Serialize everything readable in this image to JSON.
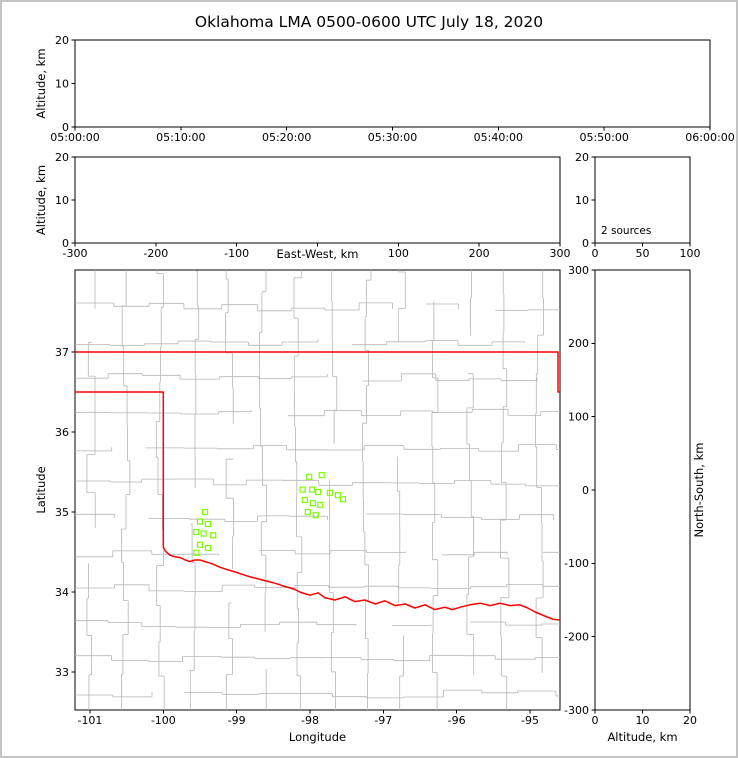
{
  "title": "Oklahoma LMA 0500-0600 UTC July 18, 2020",
  "colors": {
    "background": "#ffffff",
    "frame": "#c4c4c4",
    "axis": "#000000",
    "county": "#b6b6b6",
    "state_border": "#ff0000",
    "station": "#7CFC00",
    "text": "#000000"
  },
  "chart_data": [
    {
      "id": "time_height",
      "type": "scatter",
      "title": "",
      "xlabel": "",
      "ylabel": "Altitude, km",
      "xlim": [
        0,
        3600
      ],
      "ylim": [
        0,
        20
      ],
      "x_ticks": [
        [
          0,
          "05:00:00"
        ],
        [
          600,
          "05:10:00"
        ],
        [
          1200,
          "05:20:00"
        ],
        [
          1800,
          "05:30:00"
        ],
        [
          2400,
          "05:40:00"
        ],
        [
          3000,
          "05:50:00"
        ],
        [
          3600,
          "06:00:00"
        ]
      ],
      "y_ticks": [
        [
          0,
          "0"
        ],
        [
          10,
          "10"
        ],
        [
          20,
          "20"
        ]
      ],
      "points": []
    },
    {
      "id": "east_west_height",
      "type": "scatter",
      "xlabel": "East-West, km",
      "ylabel": "Altitude, km",
      "xlim": [
        -300,
        300
      ],
      "ylim": [
        0,
        20
      ],
      "x_ticks": [
        [
          -300,
          "-300"
        ],
        [
          -200,
          "-200"
        ],
        [
          -100,
          "-100"
        ],
        [
          0,
          ""
        ],
        [
          100,
          "100"
        ],
        [
          200,
          "200"
        ],
        [
          300,
          "300"
        ]
      ],
      "y_ticks": [
        [
          0,
          "0"
        ],
        [
          10,
          "10"
        ],
        [
          20,
          "20"
        ]
      ],
      "points": []
    },
    {
      "id": "source_count",
      "type": "histogram",
      "xlabel": "",
      "ylabel": "",
      "xlim": [
        0,
        100
      ],
      "ylim": [
        0,
        20
      ],
      "x_ticks": [
        [
          0,
          "0"
        ],
        [
          50,
          "50"
        ],
        [
          100,
          "100"
        ]
      ],
      "y_ticks": [
        [
          0,
          "0"
        ],
        [
          10,
          "10"
        ],
        [
          20,
          "20"
        ]
      ],
      "annotation": "2 sources",
      "points": []
    },
    {
      "id": "plan_view_map",
      "type": "map-scatter",
      "xlabel": "Longitude",
      "ylabel": "Latitude",
      "xlim": [
        -101.204,
        -94.591
      ],
      "ylim": [
        32.525,
        38.025
      ],
      "x_ticks": [
        [
          -101,
          "-101"
        ],
        [
          -100,
          "-100"
        ],
        [
          -99,
          "-99"
        ],
        [
          -98,
          "-98"
        ],
        [
          -97,
          "-97"
        ],
        [
          -96,
          "-96"
        ],
        [
          -95,
          "-95"
        ]
      ],
      "y_ticks": [
        [
          33,
          "33"
        ],
        [
          34,
          "34"
        ],
        [
          35,
          "35"
        ],
        [
          36,
          "36"
        ],
        [
          37,
          "37"
        ]
      ],
      "stations_lonlat": [
        [
          -98.01,
          35.44
        ],
        [
          -97.84,
          35.46
        ],
        [
          -98.1,
          35.28
        ],
        [
          -97.97,
          35.28
        ],
        [
          -97.89,
          35.25
        ],
        [
          -98.07,
          35.15
        ],
        [
          -97.73,
          35.24
        ],
        [
          -97.96,
          35.11
        ],
        [
          -97.86,
          35.09
        ],
        [
          -98.03,
          35.0
        ],
        [
          -97.92,
          34.96
        ],
        [
          -97.62,
          35.21
        ],
        [
          -97.55,
          35.16
        ],
        [
          -99.43,
          35.0
        ],
        [
          -99.5,
          34.88
        ],
        [
          -99.39,
          34.85
        ],
        [
          -99.55,
          34.75
        ],
        [
          -99.45,
          34.73
        ],
        [
          -99.32,
          34.71
        ],
        [
          -99.5,
          34.59
        ],
        [
          -99.39,
          34.55
        ],
        [
          -99.55,
          34.49
        ]
      ],
      "state_border": {
        "north": [
          [
            -101.204,
            37.0
          ],
          [
            -94.618,
            37.0
          ],
          [
            -94.618,
            36.5
          ],
          [
            -94.591,
            36.5
          ]
        ],
        "west_south": [
          [
            -101.204,
            36.5
          ],
          [
            -100.0,
            36.5
          ],
          [
            -100.0,
            34.56
          ]
        ],
        "red_river": [
          [
            -100.0,
            34.56
          ],
          [
            -99.97,
            34.51
          ],
          [
            -99.91,
            34.46
          ],
          [
            -99.84,
            34.44
          ],
          [
            -99.77,
            34.43
          ],
          [
            -99.7,
            34.4
          ],
          [
            -99.64,
            34.38
          ],
          [
            -99.57,
            34.4
          ],
          [
            -99.5,
            34.4
          ],
          [
            -99.43,
            34.38
          ],
          [
            -99.36,
            34.36
          ],
          [
            -99.3,
            34.34
          ],
          [
            -99.23,
            34.31
          ],
          [
            -99.13,
            34.28
          ],
          [
            -99.02,
            34.25
          ],
          [
            -98.92,
            34.22
          ],
          [
            -98.82,
            34.19
          ],
          [
            -98.73,
            34.17
          ],
          [
            -98.65,
            34.15
          ],
          [
            -98.56,
            34.13
          ],
          [
            -98.48,
            34.11
          ],
          [
            -98.38,
            34.08
          ],
          [
            -98.27,
            34.05
          ],
          [
            -98.2,
            34.03
          ],
          [
            -98.14,
            34.0
          ],
          [
            -98.07,
            33.98
          ],
          [
            -98.0,
            33.96
          ],
          [
            -97.89,
            33.99
          ],
          [
            -97.8,
            33.93
          ],
          [
            -97.66,
            33.9
          ],
          [
            -97.52,
            33.94
          ],
          [
            -97.39,
            33.88
          ],
          [
            -97.25,
            33.9
          ],
          [
            -97.11,
            33.85
          ],
          [
            -96.98,
            33.89
          ],
          [
            -96.84,
            33.83
          ],
          [
            -96.7,
            33.85
          ],
          [
            -96.57,
            33.8
          ],
          [
            -96.43,
            33.84
          ],
          [
            -96.3,
            33.78
          ],
          [
            -96.16,
            33.81
          ],
          [
            -96.06,
            33.78
          ],
          [
            -95.95,
            33.81
          ],
          [
            -95.82,
            33.84
          ],
          [
            -95.68,
            33.86
          ],
          [
            -95.54,
            33.83
          ],
          [
            -95.41,
            33.86
          ],
          [
            -95.27,
            33.83
          ],
          [
            -95.14,
            33.84
          ],
          [
            -95.03,
            33.8
          ],
          [
            -94.93,
            33.75
          ],
          [
            -94.8,
            33.7
          ],
          [
            -94.69,
            33.66
          ],
          [
            -94.59,
            33.65
          ]
        ]
      },
      "county_grid": {
        "lon_step": 0.47,
        "lat_step": 0.44,
        "lon_jitter": 0.12,
        "lat_jitter": 0.1,
        "skip_prob": 0.13,
        "seed": 20200718
      }
    },
    {
      "id": "north_south_height",
      "type": "scatter",
      "xlabel": "Altitude, km",
      "ylabel": "North-South, km",
      "xlim": [
        0,
        20
      ],
      "ylim": [
        -300,
        300
      ],
      "x_ticks": [
        [
          0,
          "0"
        ],
        [
          10,
          "10"
        ],
        [
          20,
          "20"
        ]
      ],
      "y_ticks": [
        [
          300,
          "300"
        ],
        [
          200,
          "200"
        ],
        [
          100,
          "100"
        ],
        [
          0,
          "0"
        ],
        [
          -100,
          "-100"
        ],
        [
          -200,
          "-200"
        ],
        [
          -300,
          "-300"
        ]
      ],
      "points": []
    }
  ]
}
